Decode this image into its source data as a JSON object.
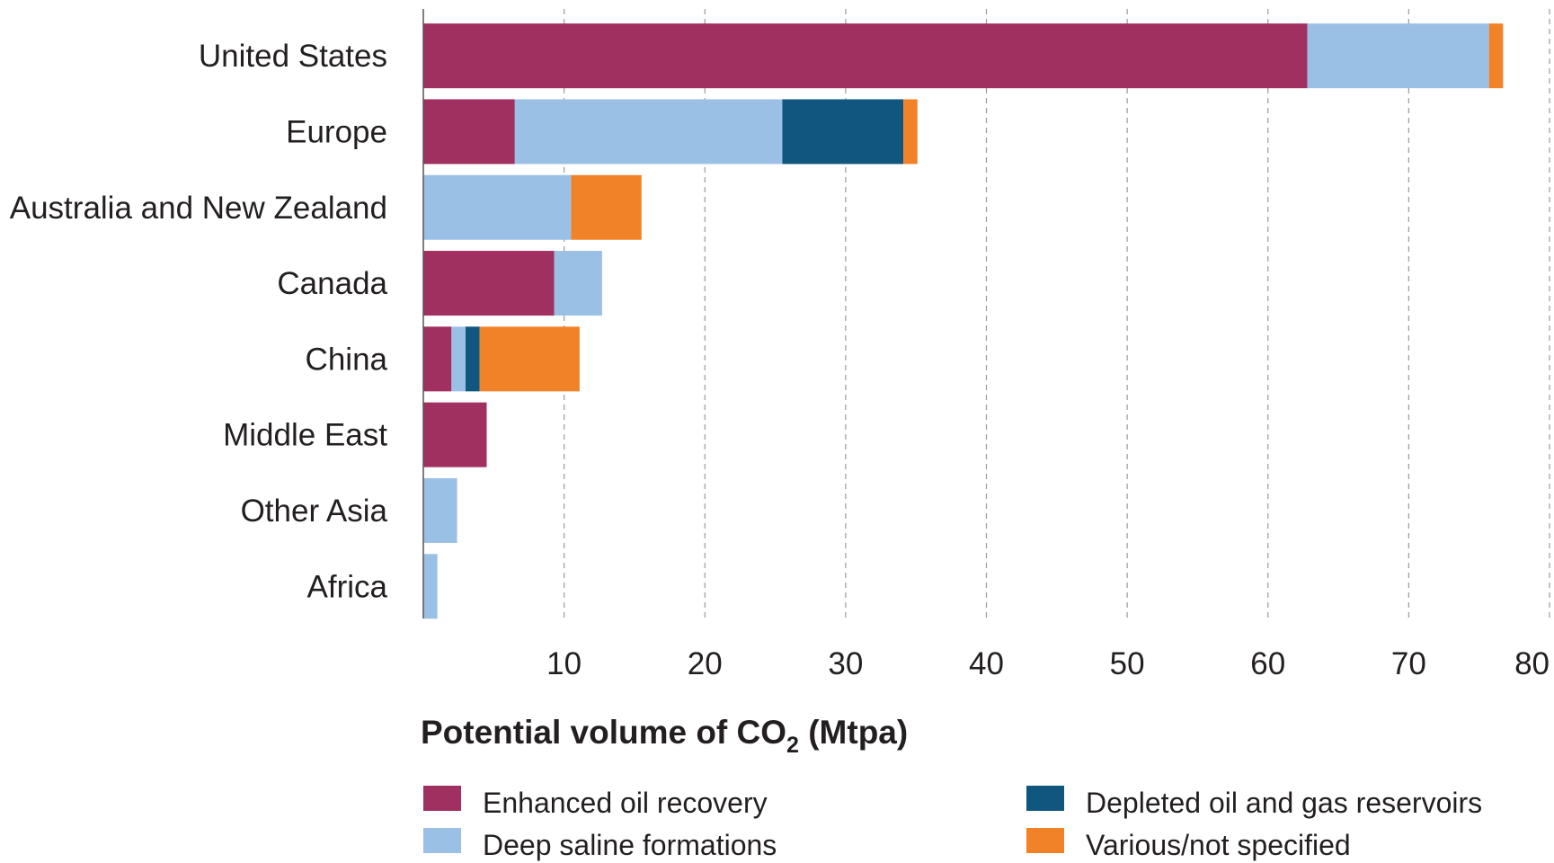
{
  "chart_data": {
    "type": "bar",
    "orientation": "horizontal",
    "stacked": true,
    "categories": [
      "United States",
      "Europe",
      "Australia and New Zealand",
      "Canada",
      "China",
      "Middle East",
      "Other Asia",
      "Africa"
    ],
    "series": [
      {
        "name": "Enhanced oil recovery",
        "color": "#a0305f",
        "values": [
          62.8,
          6.5,
          0,
          9.3,
          2.0,
          4.5,
          0,
          0
        ]
      },
      {
        "name": "Deep saline formations",
        "color": "#9bc0e6",
        "values": [
          12.9,
          19.0,
          10.5,
          3.4,
          1.0,
          0,
          2.4,
          1.0
        ]
      },
      {
        "name": "Depleted oil and gas reservoirs",
        "color": "#10567f",
        "values": [
          0,
          8.6,
          0,
          0,
          1.0,
          0,
          0,
          0
        ]
      },
      {
        "name": "Various/not specified",
        "color": "#f28227",
        "values": [
          1.0,
          1.0,
          5.0,
          0,
          7.1,
          0,
          0,
          0
        ]
      }
    ],
    "xticks": [
      "10",
      "20",
      "30",
      "40",
      "50",
      "60",
      "70",
      "80"
    ],
    "xlim": [
      0,
      80
    ],
    "xlabel_main": "Potential volume of CO",
    "xlabel_sub": "2",
    "xlabel_end": " (Mtpa)",
    "grid": "vertical dashed",
    "legend_position": "bottom"
  }
}
